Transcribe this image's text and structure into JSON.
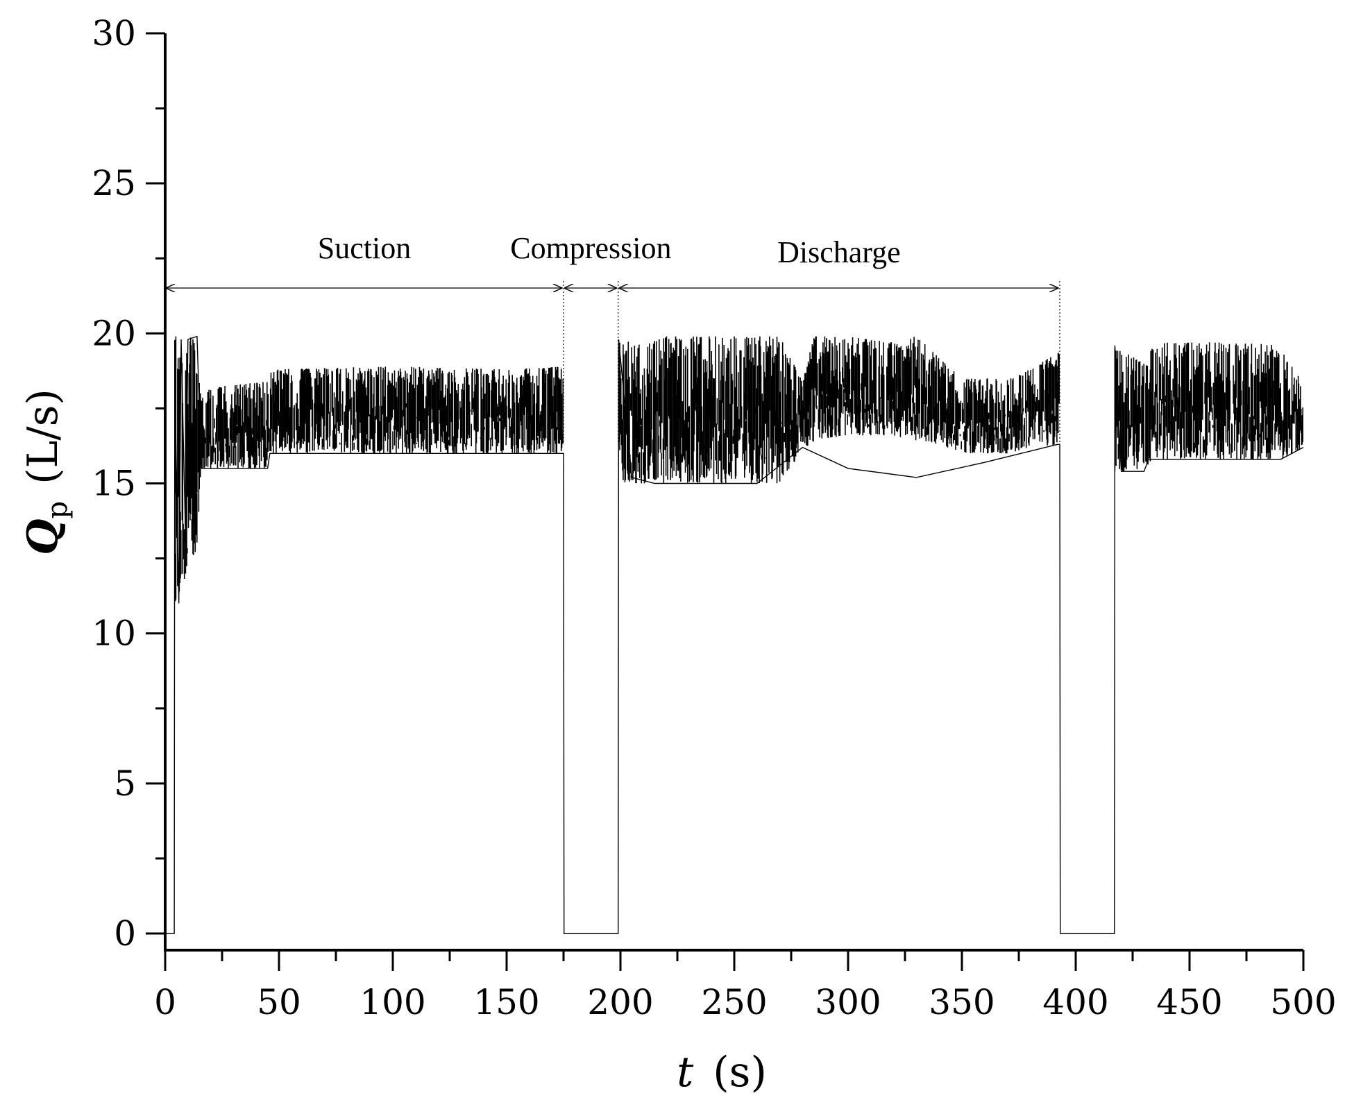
{
  "chart_data": {
    "type": "line",
    "title": "",
    "xlabel": "t",
    "xlabel_unit": "(s)",
    "ylabel_symbol": "Q",
    "ylabel_subscript": "p",
    "ylabel_unit": "(L/s)",
    "xlim": [
      0,
      500
    ],
    "ylim": [
      0,
      30
    ],
    "x_ticks": [
      0,
      50,
      100,
      150,
      200,
      250,
      300,
      350,
      400,
      450,
      500
    ],
    "x_tick_labels": [
      "0",
      "50",
      "100",
      "150",
      "200",
      "250",
      "300",
      "350",
      "400",
      "450",
      "500"
    ],
    "y_ticks": [
      0,
      5,
      10,
      15,
      20,
      25,
      30
    ],
    "y_tick_labels": [
      "0",
      "5",
      "10",
      "15",
      "20",
      "25",
      "30"
    ],
    "grid": false,
    "line_color": "#000000",
    "phases": [
      {
        "label": "Suction",
        "start": 0,
        "end": 175
      },
      {
        "label": "Compression",
        "start": 175,
        "end": 199
      },
      {
        "label": "Discharge",
        "start": 199,
        "end": 393
      }
    ],
    "series": [
      {
        "points": [
          [
            0,
            0
          ],
          [
            4,
            0
          ],
          [
            4.2,
            18.5
          ],
          [
            6,
            11
          ],
          [
            7,
            19.8
          ],
          [
            9,
            13
          ],
          [
            10,
            19.8
          ],
          [
            14,
            19.9
          ],
          [
            15,
            17.5
          ],
          [
            16,
            15.5
          ],
          [
            25,
            15.5
          ],
          [
            35,
            15.5
          ],
          [
            45,
            15.5
          ],
          [
            46,
            16
          ],
          [
            60,
            16
          ],
          [
            100,
            16
          ],
          [
            150,
            16
          ],
          [
            175,
            16
          ],
          [
            175.2,
            0
          ],
          [
            199,
            0
          ],
          [
            199.2,
            19.8
          ],
          [
            205,
            15.2
          ],
          [
            215,
            15
          ],
          [
            230,
            15
          ],
          [
            260,
            15
          ],
          [
            280,
            16.2
          ],
          [
            300,
            15.5
          ],
          [
            330,
            15.2
          ],
          [
            360,
            15.7
          ],
          [
            392,
            16.3
          ],
          [
            393,
            16.3
          ],
          [
            393.2,
            0
          ],
          [
            417,
            0
          ],
          [
            417.2,
            19.6
          ],
          [
            420,
            15.4
          ],
          [
            430,
            15.4
          ],
          [
            432,
            15.8
          ],
          [
            460,
            15.8
          ],
          [
            490,
            15.8
          ],
          [
            500,
            16.2
          ]
        ],
        "envelope": [
          [
            0,
            0,
            0
          ],
          [
            4,
            0,
            0
          ],
          [
            4.2,
            11,
            19.9
          ],
          [
            14,
            12.8,
            19.9
          ],
          [
            16,
            15.5,
            17.8
          ],
          [
            20,
            15.5,
            18.2
          ],
          [
            45,
            15.5,
            18.4
          ],
          [
            46,
            16,
            18.8
          ],
          [
            100,
            16,
            18.9
          ],
          [
            150,
            16,
            18.8
          ],
          [
            175,
            16,
            18.9
          ],
          [
            175.2,
            0,
            0
          ],
          [
            199,
            0,
            0
          ],
          [
            199.2,
            15,
            19.8
          ],
          [
            210,
            15,
            19.6
          ],
          [
            220,
            15,
            19.9
          ],
          [
            270,
            15,
            19.9
          ],
          [
            280,
            16.1,
            18.4
          ],
          [
            285,
            16.4,
            19.9
          ],
          [
            300,
            16.6,
            19.9
          ],
          [
            320,
            16.6,
            19.7
          ],
          [
            330,
            16.4,
            19.9
          ],
          [
            340,
            16.3,
            19.2
          ],
          [
            350,
            16,
            18.5
          ],
          [
            370,
            16,
            18.5
          ],
          [
            380,
            16.2,
            18.8
          ],
          [
            393,
            16.3,
            19.4
          ],
          [
            393.2,
            0,
            0
          ],
          [
            417,
            0,
            0
          ],
          [
            417.2,
            15.4,
            19.6
          ],
          [
            430,
            15.4,
            19.0
          ],
          [
            435,
            15.8,
            19.7
          ],
          [
            470,
            15.8,
            19.7
          ],
          [
            490,
            15.8,
            19.6
          ],
          [
            500,
            16.2,
            18.3
          ]
        ]
      }
    ]
  }
}
